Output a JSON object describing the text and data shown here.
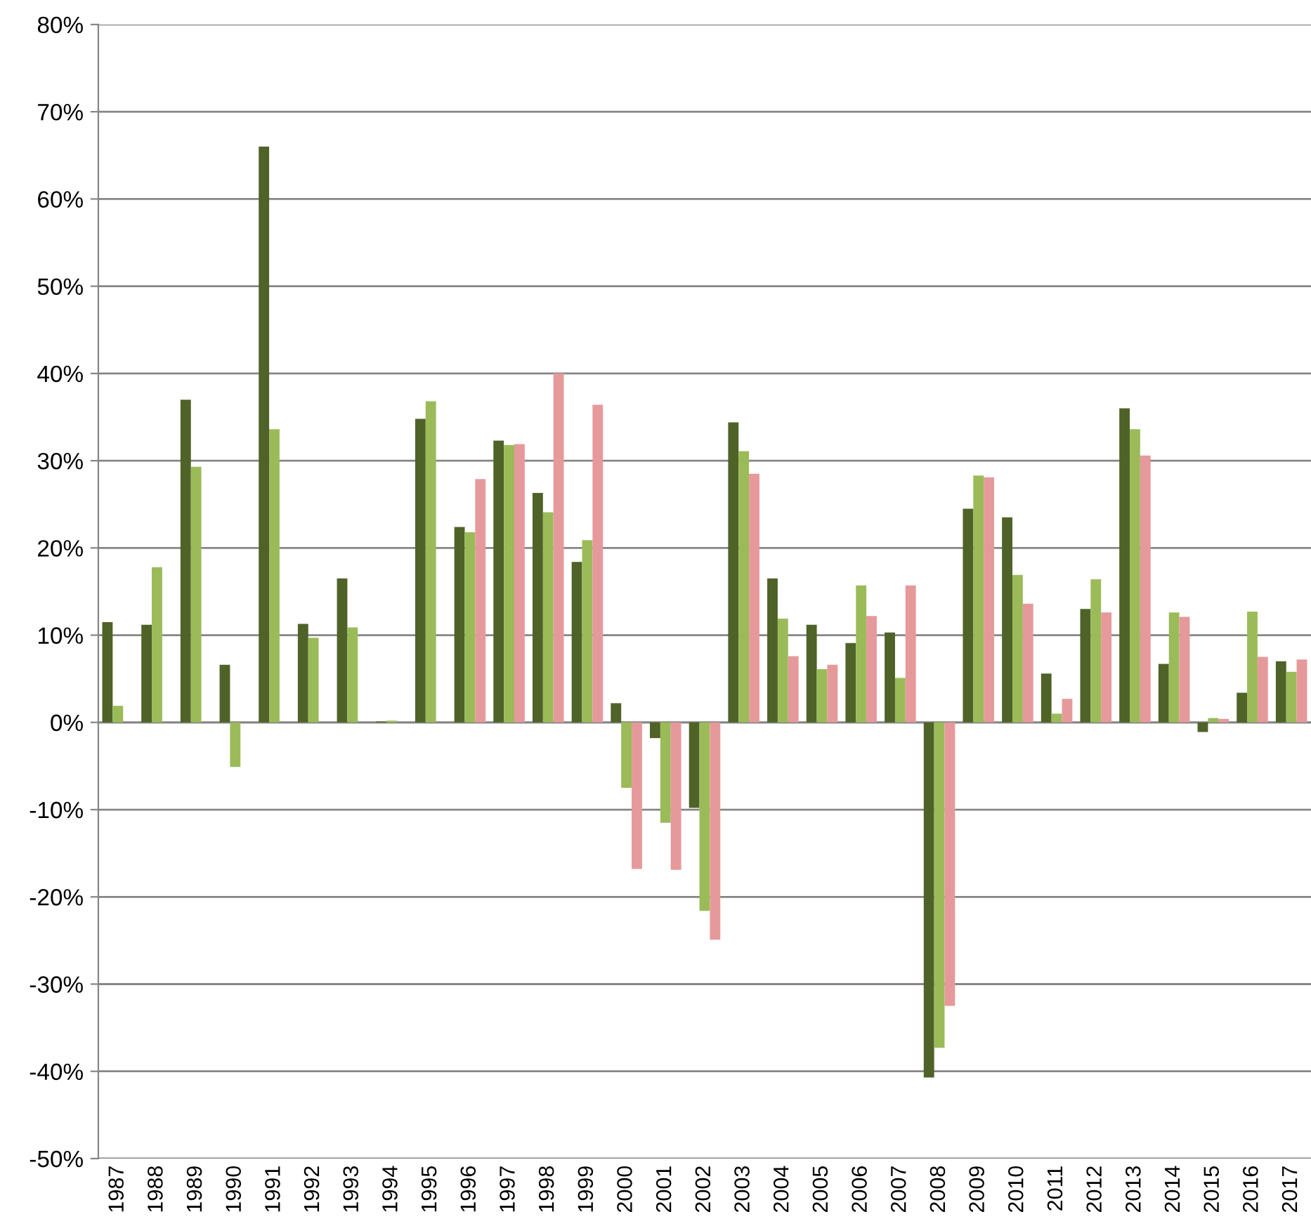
{
  "chart_data": {
    "type": "bar",
    "categories": [
      "1987",
      "1988",
      "1989",
      "1990",
      "1991",
      "1992",
      "1993",
      "1994",
      "1995",
      "1996",
      "1997",
      "1998",
      "1999",
      "2000",
      "2001",
      "2002",
      "2003",
      "2004",
      "2005",
      "2006",
      "2007",
      "2008",
      "2009",
      "2010",
      "2011",
      "2012",
      "2013",
      "2014",
      "2015",
      "2016",
      "2017"
    ],
    "series": [
      {
        "color": "#4f6228",
        "values": [
          11.5,
          11.2,
          37,
          6.6,
          66,
          11.3,
          16.5,
          0.1,
          34.8,
          22.4,
          32.3,
          26.3,
          18.4,
          2.2,
          -1.8,
          -9.8,
          34.4,
          16.5,
          11.2,
          9.1,
          10.3,
          -40.7,
          24.5,
          23.5,
          5.6,
          13.0,
          36.0,
          6.7,
          -1.1,
          3.4,
          7.0
        ]
      },
      {
        "color": "#9bbb59",
        "values": [
          1.9,
          17.8,
          29.3,
          -5.1,
          33.6,
          9.7,
          10.9,
          0.2,
          36.8,
          21.8,
          31.8,
          24.1,
          20.9,
          -7.5,
          -11.5,
          -21.6,
          31.1,
          11.9,
          6.1,
          15.7,
          5.1,
          -37.3,
          28.3,
          16.9,
          1.0,
          16.4,
          33.6,
          12.6,
          0.5,
          12.7,
          5.8
        ]
      },
      {
        "color": "#e6999b",
        "values": [
          null,
          null,
          null,
          null,
          null,
          null,
          null,
          null,
          null,
          27.9,
          31.9,
          40.0,
          36.4,
          -16.8,
          -16.9,
          -24.9,
          28.5,
          7.6,
          6.6,
          12.2,
          15.7,
          -32.5,
          28.1,
          13.6,
          2.7,
          12.6,
          30.6,
          12.1,
          0.4,
          7.5,
          7.2
        ]
      }
    ],
    "ylim": [
      -50,
      80
    ],
    "yticks": [
      {
        "value": -50,
        "label": "-50%"
      },
      {
        "value": -40,
        "label": "-40%"
      },
      {
        "value": -30,
        "label": "-30%"
      },
      {
        "value": -20,
        "label": "-20%"
      },
      {
        "value": -10,
        "label": "-10%"
      },
      {
        "value": 0,
        "label": "0%"
      },
      {
        "value": 10,
        "label": "10%"
      },
      {
        "value": 20,
        "label": "20%"
      },
      {
        "value": 30,
        "label": "30%"
      },
      {
        "value": 40,
        "label": "40%"
      },
      {
        "value": 50,
        "label": "50%"
      },
      {
        "value": 60,
        "label": "60%"
      },
      {
        "value": 70,
        "label": "70%"
      },
      {
        "value": 80,
        "label": "80%"
      }
    ],
    "grid": "y"
  }
}
